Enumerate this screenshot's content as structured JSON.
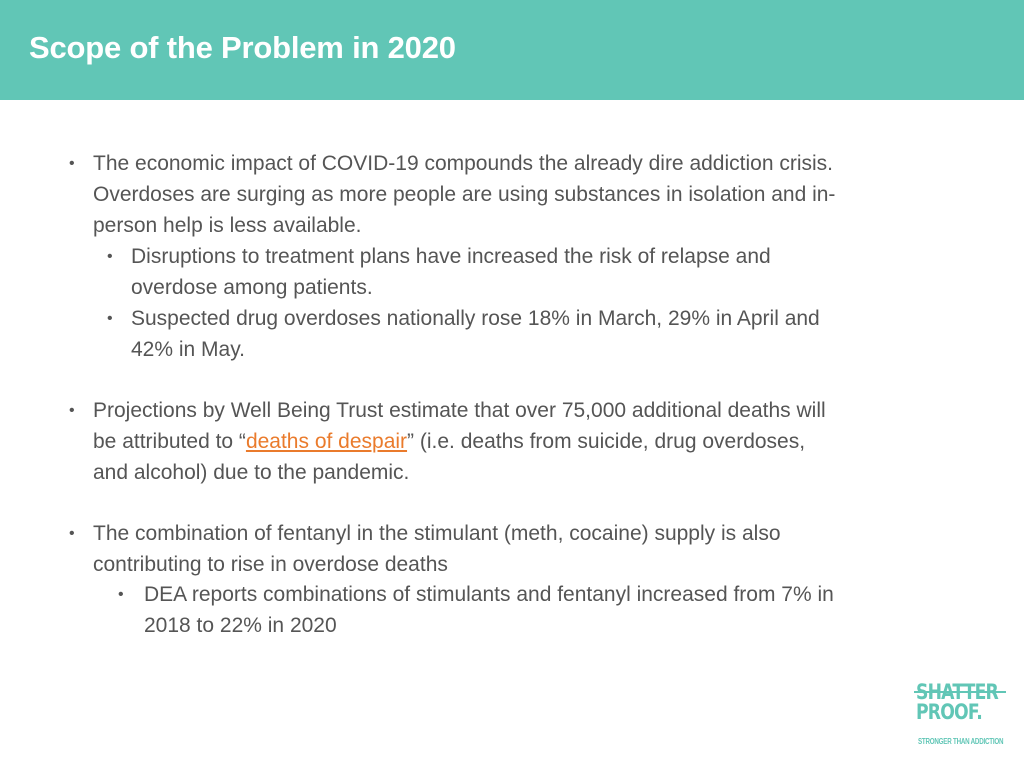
{
  "slide": {
    "title": "Scope of the Problem in 2020",
    "colors": {
      "header_bg": "#61c6b6",
      "title_text": "#ffffff",
      "body_text": "#555555",
      "link": "#ea7b2c",
      "logo": "#61c6b6"
    }
  },
  "bullets": {
    "b1": {
      "marker": "•",
      "lines": [
        "The economic impact of COVID-19 compounds the already dire addiction crisis.",
        "Overdoses are surging as more people are using substances in isolation and in-",
        "person help is less available."
      ],
      "sub1": {
        "marker": "•",
        "lines": [
          "Disruptions to treatment plans have increased the risk of relapse and",
          "overdose among patients."
        ]
      },
      "sub2": {
        "marker": "•",
        "lines": [
          "Suspected drug overdoses nationally rose 18% in March, 29% in April and",
          "42% in May."
        ]
      }
    },
    "b2": {
      "marker": "•",
      "line1": "Projections by Well Being Trust estimate that over 75,000 additional deaths will",
      "line2_prefix": "be attributed to “",
      "link_text": "deaths of despair",
      "line2_suffix": "” (i.e. deaths from suicide, drug overdoses,",
      "line3": "and alcohol) due to the pandemic."
    },
    "b3": {
      "marker": "•",
      "lines": [
        "The combination of fentanyl in the stimulant (meth, cocaine) supply is also",
        "contributing to rise in overdose deaths"
      ],
      "sub1": {
        "marker": "•",
        "lines": [
          "DEA reports combinations of stimulants and fentanyl increased from 7% in",
          "2018 to 22% in 2020"
        ]
      }
    }
  },
  "logo": {
    "word1": "SHATTER",
    "word2": "PROOF.",
    "tagline": "STRONGER THAN ADDICTION"
  }
}
